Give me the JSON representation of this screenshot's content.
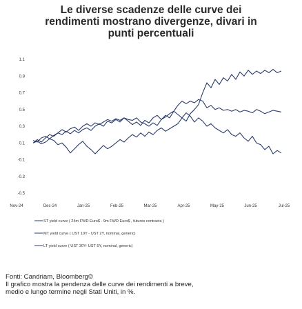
{
  "title": {
    "line1": "Le diverse scadenze delle curve dei",
    "line2": "rendimenti mostrano divergenze, divari in",
    "line3": "punti percentuali"
  },
  "chart_data": {
    "type": "line",
    "title": "",
    "xlabel": "",
    "ylabel": "",
    "x_ticks": [
      "Nov-24",
      "Dec-24",
      "Jan-25",
      "Feb-25",
      "Mar-25",
      "Apr-25",
      "May-25",
      "Jun-25",
      "Jul-25"
    ],
    "y_ticks": [
      "1.1",
      "0.9",
      "0.7",
      "0.5",
      "0.3",
      "0.1",
      "-0.1",
      "-0.3",
      "-0.5"
    ],
    "ylim": [
      -0.5,
      1.1
    ],
    "grid": false,
    "legend_position": "bottom-left",
    "series": [
      {
        "name": "ST yield curve ( 24m FWD Euro$ - 9m FWD Euro$ , futures contracts )",
        "color": "#2a3b6b",
        "values": [
          0.1,
          0.12,
          0.09,
          0.11,
          0.15,
          0.13,
          0.08,
          0.1,
          0.05,
          -0.02,
          0.03,
          0.08,
          0.12,
          0.06,
          0.02,
          -0.03,
          0.02,
          0.07,
          0.03,
          0.06,
          0.1,
          0.14,
          0.11,
          0.16,
          0.2,
          0.17,
          0.22,
          0.18,
          0.23,
          0.2,
          0.25,
          0.28,
          0.24,
          0.27,
          0.3,
          0.33,
          0.4,
          0.36,
          0.45,
          0.5,
          0.56,
          0.7,
          0.82,
          0.76,
          0.86,
          0.8,
          0.88,
          0.84,
          0.92,
          0.86,
          0.95,
          0.9,
          0.97,
          0.92,
          0.96,
          0.93,
          0.97,
          0.94,
          0.98,
          0.94,
          0.96
        ]
      },
      {
        "name": "MT yield curve ( UST 10Y - UST 2Y, nominal, generic)",
        "color": "#2a3b6b",
        "values": [
          0.1,
          0.14,
          0.11,
          0.16,
          0.2,
          0.18,
          0.22,
          0.26,
          0.23,
          0.27,
          0.29,
          0.25,
          0.3,
          0.33,
          0.3,
          0.34,
          0.32,
          0.35,
          0.38,
          0.36,
          0.39,
          0.37,
          0.4,
          0.38,
          0.37,
          0.4,
          0.35,
          0.33,
          0.3,
          0.34,
          0.31,
          0.38,
          0.43,
          0.4,
          0.48,
          0.55,
          0.6,
          0.57,
          0.6,
          0.58,
          0.62,
          0.6,
          0.52,
          0.55,
          0.5,
          0.52,
          0.49,
          0.5,
          0.48,
          0.5,
          0.47,
          0.49,
          0.48,
          0.46,
          0.5,
          0.48,
          0.45,
          0.47,
          0.49,
          0.48,
          0.47
        ]
      },
      {
        "name": "LT yield curve ( UST 30Y- UST 5Y, nominal, generic)",
        "color": "#2a3b6b",
        "values": [
          0.13,
          0.11,
          0.16,
          0.18,
          0.15,
          0.19,
          0.22,
          0.2,
          0.24,
          0.21,
          0.25,
          0.22,
          0.26,
          0.28,
          0.25,
          0.3,
          0.33,
          0.3,
          0.36,
          0.34,
          0.38,
          0.35,
          0.4,
          0.36,
          0.32,
          0.35,
          0.31,
          0.37,
          0.34,
          0.4,
          0.43,
          0.38,
          0.41,
          0.45,
          0.48,
          0.44,
          0.4,
          0.46,
          0.42,
          0.35,
          0.4,
          0.36,
          0.3,
          0.33,
          0.28,
          0.25,
          0.22,
          0.26,
          0.2,
          0.18,
          0.22,
          0.16,
          0.12,
          0.18,
          0.1,
          0.08,
          0.02,
          0.06,
          -0.03,
          0.01,
          -0.02
        ]
      }
    ]
  },
  "footer": {
    "line1": "Fonti: Candriam, Bloomberg©",
    "line2": "Il grafico mostra la pendenza delle curve dei rendimenti a breve,",
    "line3": "medio e lungo termine negli Stati Uniti, in %."
  }
}
